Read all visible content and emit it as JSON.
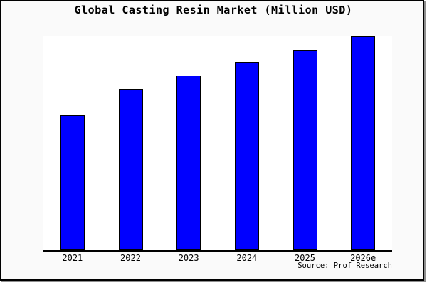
{
  "title": "Global Casting Resin Market (Million USD)",
  "source_credit": "Source: Prof Research",
  "colors": {
    "bar_fill": "#0000ff",
    "bar_border": "#000000",
    "figure_background": "#fafafa",
    "plot_background": "#ffffff",
    "axis_line": "#000000",
    "frame_border": "#000000",
    "frame_shadow": "#8e8e8e",
    "text": "#000000"
  },
  "chart_data": {
    "type": "bar",
    "title": "Global Casting Resin Market (Million USD)",
    "categories": [
      "2021",
      "2022",
      "2023",
      "2024",
      "2025",
      "2026e"
    ],
    "values": [
      189,
      226,
      245,
      264,
      281,
      300
    ],
    "values_unit": "relative height (no y-axis labels shown; estimated from pixels)",
    "xlabel": "",
    "ylabel": "",
    "grid": false,
    "legend": false,
    "y_axis_visible": false,
    "annotations": [
      "Source: Prof Research"
    ]
  }
}
